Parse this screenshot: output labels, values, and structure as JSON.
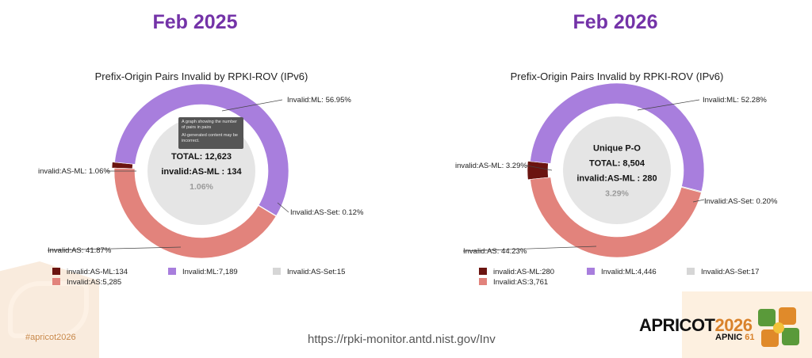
{
  "headings": {
    "left": "Feb 2025",
    "right": "Feb 2026"
  },
  "tooltip": {
    "line1": "A graph showing the number of pairs in pairs",
    "line2": "AI-generated content may be incorrect."
  },
  "footer": {
    "url": "https://rpki-monitor.antd.nist.gov/Inv",
    "hashtag": "#apricot2026"
  },
  "brand": {
    "name": "APRICOT",
    "year": "2026",
    "sub_a": "APNIC",
    "sub_b": "61"
  },
  "colors": {
    "invalid_as_ml": "#6b1410",
    "invalid_ml": "#a87edd",
    "invalid_as_set": "#d6d6d6",
    "invalid_as": "#e2837c",
    "center": "#e5e5e5",
    "heading": "#7433a8"
  },
  "chart_data": [
    {
      "type": "pie",
      "title": "Prefix-Origin Pairs Invalid by RPKI-ROV (IPv6)",
      "slices": [
        {
          "name": "invalid:AS-ML",
          "value": 134,
          "percent": 1.06,
          "callout": "invalid:AS-ML: 1.06%",
          "legend": "invalid:AS-ML:134",
          "color": "#6b1410"
        },
        {
          "name": "Invalid:ML",
          "value": 7189,
          "percent": 56.95,
          "callout": "Invalid:ML: 56.95%",
          "legend": "Invalid:ML:7,189",
          "color": "#a87edd"
        },
        {
          "name": "Invalid:AS-Set",
          "value": 15,
          "percent": 0.12,
          "callout": "Invalid:AS-Set: 0.12%",
          "legend": "Invalid:AS-Set:15",
          "color": "#d6d6d6"
        },
        {
          "name": "Invalid:AS",
          "value": 5285,
          "percent": 41.87,
          "callout": "Invalid:AS: 41.87%",
          "legend": "Invalid:AS:5,285",
          "color": "#e2837c"
        }
      ],
      "center": {
        "heading": "",
        "total": "TOTAL: 12,623",
        "detail": "invalid:AS-ML : 134",
        "percent": "1.06%"
      }
    },
    {
      "type": "pie",
      "title": "Prefix-Origin Pairs Invalid by RPKI-ROV (IPv6)",
      "slices": [
        {
          "name": "invalid:AS-ML",
          "value": 280,
          "percent": 3.29,
          "callout": "invalid:AS-ML: 3.29%",
          "legend": "invalid:AS-ML:280",
          "color": "#6b1410"
        },
        {
          "name": "Invalid:ML",
          "value": 4446,
          "percent": 52.28,
          "callout": "Invalid:ML: 52.28%",
          "legend": "Invalid:ML:4,446",
          "color": "#a87edd"
        },
        {
          "name": "Invalid:AS-Set",
          "value": 17,
          "percent": 0.2,
          "callout": "Invalid:AS-Set: 0.20%",
          "legend": "Invalid:AS-Set:17",
          "color": "#d6d6d6"
        },
        {
          "name": "Invalid:AS",
          "value": 3761,
          "percent": 44.23,
          "callout": "Invalid:AS: 44.23%",
          "legend": "Invalid:AS:3,761",
          "color": "#e2837c"
        }
      ],
      "center": {
        "heading": "Unique P-O",
        "total": "TOTAL: 8,504",
        "detail": "invalid:AS-ML : 280",
        "percent": "3.29%"
      }
    }
  ]
}
